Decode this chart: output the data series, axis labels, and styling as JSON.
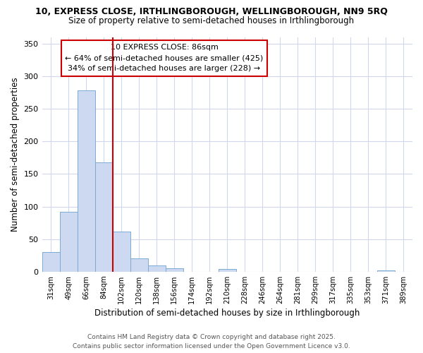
{
  "title_line1": "10, EXPRESS CLOSE, IRTHLINGBOROUGH, WELLINGBOROUGH, NN9 5RQ",
  "title_line2": "Size of property relative to semi-detached houses in Irthlingborough",
  "xlabel": "Distribution of semi-detached houses by size in Irthlingborough",
  "ylabel": "Number of semi-detached properties",
  "bin_labels": [
    "31sqm",
    "49sqm",
    "66sqm",
    "84sqm",
    "102sqm",
    "120sqm",
    "138sqm",
    "156sqm",
    "174sqm",
    "192sqm",
    "210sqm",
    "228sqm",
    "246sqm",
    "264sqm",
    "281sqm",
    "299sqm",
    "317sqm",
    "335sqm",
    "353sqm",
    "371sqm",
    "389sqm"
  ],
  "bin_values": [
    30,
    92,
    278,
    168,
    62,
    20,
    10,
    5,
    0,
    0,
    4,
    0,
    0,
    0,
    0,
    0,
    0,
    0,
    0,
    2,
    0
  ],
  "bar_color": "#ccd9f0",
  "bar_edge_color": "#7aaad4",
  "red_line_color": "#cc0000",
  "property_bin_index": 3,
  "annotation_line1": "10 EXPRESS CLOSE: 86sqm",
  "annotation_line2": "← 64% of semi-detached houses are smaller (425)",
  "annotation_line3": "34% of semi-detached houses are larger (228) →",
  "ylim": [
    0,
    360
  ],
  "yticks": [
    0,
    50,
    100,
    150,
    200,
    250,
    300,
    350
  ],
  "footer_line1": "Contains HM Land Registry data © Crown copyright and database right 2025.",
  "footer_line2": "Contains public sector information licensed under the Open Government Licence v3.0.",
  "background_color": "#ffffff",
  "plot_bg_color": "#ffffff",
  "grid_color": "#d0d8ee"
}
